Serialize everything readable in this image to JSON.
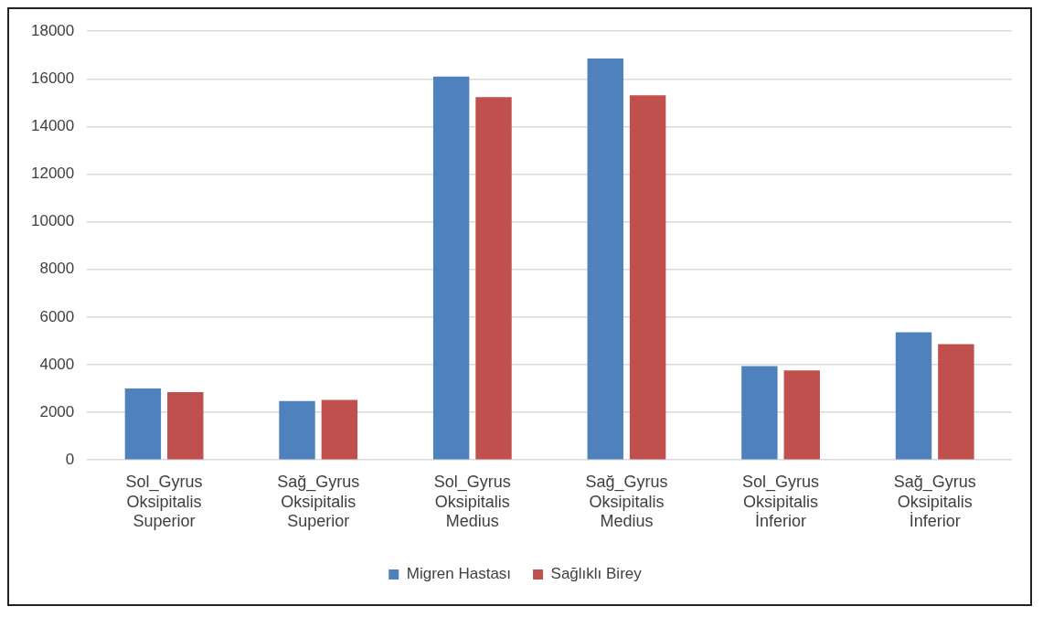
{
  "chart_data": {
    "type": "bar",
    "categories": [
      "Sol_Gyrus Oksipitalis Superior",
      "Sağ_Gyrus Oksipitalis Superior",
      "Sol_Gyrus Oksipitalis Medius",
      "Sağ_Gyrus Oksipitalis Medius",
      "Sol_Gyrus Oksipitalis İnferior",
      "Sağ_Gyrus Oksipitalis İnferior"
    ],
    "series": [
      {
        "name": "Migren Hastası",
        "color": "#4f81bd",
        "values": [
          3000,
          2470,
          16100,
          16860,
          3940,
          5360
        ]
      },
      {
        "name": "Sağlıklı Birey",
        "color": "#c0504d",
        "values": [
          2850,
          2520,
          15230,
          15310,
          3760,
          4860
        ]
      }
    ],
    "ylim": [
      0,
      18000
    ],
    "yticks": [
      0,
      2000,
      4000,
      6000,
      8000,
      10000,
      12000,
      14000,
      16000,
      18000
    ],
    "grid": "y",
    "legend": "bottom"
  }
}
